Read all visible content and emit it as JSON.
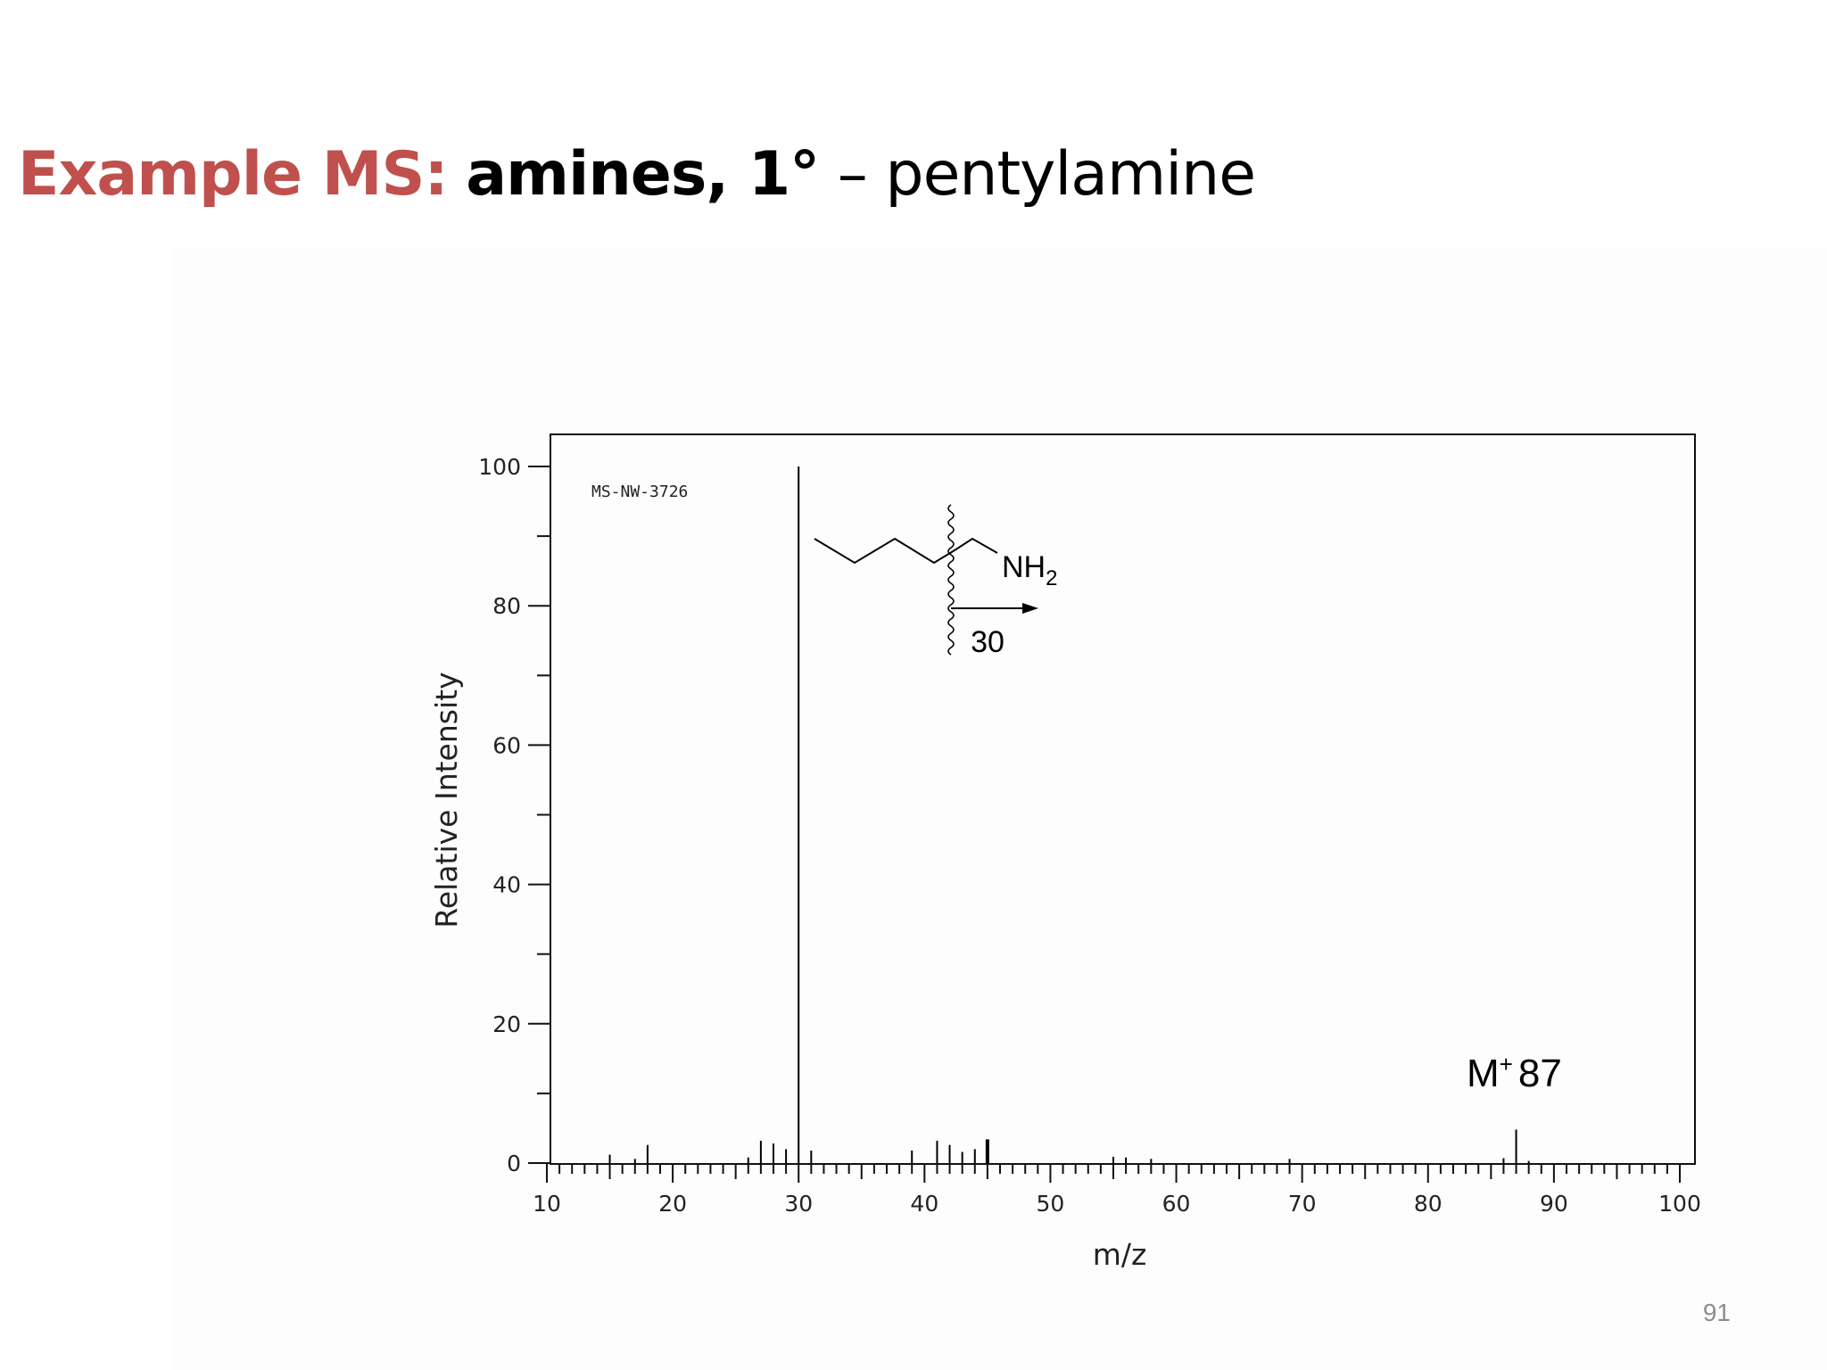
{
  "slide": {
    "title_part1": "Example MS:",
    "title_part2": "amines, 1°",
    "title_part3": "– pentylamine",
    "page_number": "91"
  },
  "chart_data": {
    "type": "bar",
    "spectrum_id": "MS-NW-3726",
    "xlabel": "m/z",
    "ylabel": "Relative Intensity",
    "xlim": [
      10,
      100
    ],
    "ylim": [
      0,
      100
    ],
    "x_ticks": [
      10,
      20,
      30,
      40,
      50,
      60,
      70,
      80,
      90,
      100
    ],
    "y_ticks": [
      0,
      20,
      40,
      60,
      80,
      100
    ],
    "grid": false,
    "peaks": [
      {
        "mz": 15,
        "intensity": 1.2
      },
      {
        "mz": 17,
        "intensity": 0.6
      },
      {
        "mz": 18,
        "intensity": 2.6
      },
      {
        "mz": 26,
        "intensity": 0.8
      },
      {
        "mz": 27,
        "intensity": 3.2
      },
      {
        "mz": 28,
        "intensity": 2.8
      },
      {
        "mz": 29,
        "intensity": 2.0
      },
      {
        "mz": 30,
        "intensity": 100
      },
      {
        "mz": 31,
        "intensity": 1.8
      },
      {
        "mz": 39,
        "intensity": 1.8
      },
      {
        "mz": 41,
        "intensity": 3.2
      },
      {
        "mz": 42,
        "intensity": 2.6
      },
      {
        "mz": 43,
        "intensity": 1.6
      },
      {
        "mz": 44,
        "intensity": 2.0
      },
      {
        "mz": 45,
        "intensity": 3.4
      },
      {
        "mz": 55,
        "intensity": 0.9
      },
      {
        "mz": 56,
        "intensity": 0.8
      },
      {
        "mz": 58,
        "intensity": 0.6
      },
      {
        "mz": 69,
        "intensity": 0.6
      },
      {
        "mz": 86,
        "intensity": 0.7
      },
      {
        "mz": 87,
        "intensity": 4.8
      },
      {
        "mz": 88,
        "intensity": 0.3
      }
    ],
    "annotations": {
      "fragment_label": "30",
      "amine_group": "NH",
      "amine_subscript": "2",
      "molecular_ion": "M",
      "molecular_ion_sup": "+",
      "molecular_ion_value": "87"
    }
  }
}
